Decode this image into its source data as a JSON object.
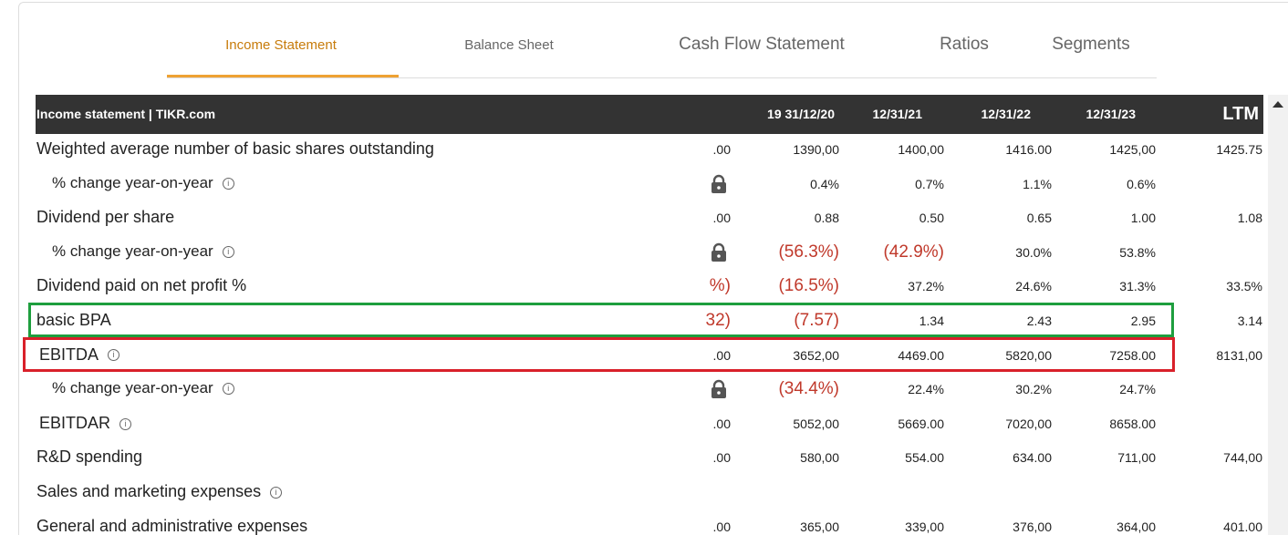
{
  "tabs": [
    "Income Statement",
    "Balance Sheet",
    "Cash Flow Statement",
    "Ratios",
    "Segments"
  ],
  "active_tab": 0,
  "table": {
    "header": [
      "Income statement | TIKR.com",
      "19 31/12/20",
      "12/31/21",
      "12/31/22",
      "12/31/23",
      "LTM"
    ],
    "rows": [
      {
        "label": "Weighted average number of basic shares outstanding",
        "cells": [
          ".00",
          "1390,00",
          "1400,00",
          "1416.00",
          "1425,00",
          "1425.75"
        ]
      },
      {
        "label": "% change year-on-year",
        "sub": true,
        "info": true,
        "lock": true,
        "cells": [
          null,
          "0.4%",
          "0.7%",
          "1.1%",
          "0.6%",
          null
        ]
      },
      {
        "label": "Dividend per share",
        "cells": [
          ".00",
          "0.88",
          "0.50",
          "0.65",
          "1.00",
          "1.08"
        ]
      },
      {
        "label": "% change year-on-year",
        "sub": true,
        "info": true,
        "lock": true,
        "cells": [
          null,
          "(56.3%)",
          "(42.9%)",
          "30.0%",
          "53.8%",
          null
        ]
      },
      {
        "label": "Dividend paid on net profit %",
        "cells": [
          "%)",
          "(16.5%)",
          "37.2%",
          "24.6%",
          "31.3%",
          "33.5%"
        ]
      },
      {
        "label": "basic BPA",
        "highlight": "#1e9e3e",
        "cells": [
          "32)",
          "(7.57)",
          "1.34",
          "2.43",
          "2.95",
          "3.14"
        ]
      },
      {
        "label": "EBITDA",
        "info": true,
        "highlight": "#d9202a",
        "cells": [
          ".00",
          "3652,00",
          "4469.00",
          "5820,00",
          "7258.00",
          "8131,00"
        ]
      },
      {
        "label": "% change year-on-year",
        "sub": true,
        "info": true,
        "lock": true,
        "cells": [
          null,
          "(34.4%)",
          "22.4%",
          "30.2%",
          "24.7%",
          null
        ]
      },
      {
        "label": "EBITDAR",
        "info": true,
        "cells": [
          ".00",
          "5052,00",
          "5669.00",
          "7020,00",
          "8658.00",
          null
        ]
      },
      {
        "label": "R&D spending",
        "cells": [
          ".00",
          "580,00",
          "554.00",
          "634.00",
          "711,00",
          "744,00"
        ]
      },
      {
        "label": "Sales and marketing expenses",
        "info": true,
        "cells": [
          null,
          null,
          null,
          null,
          null,
          null
        ]
      },
      {
        "label": "General and administrative expenses",
        "cells": [
          ".00",
          "365,00",
          "339,00",
          "376,00",
          "364,00",
          "401.00"
        ]
      }
    ]
  }
}
